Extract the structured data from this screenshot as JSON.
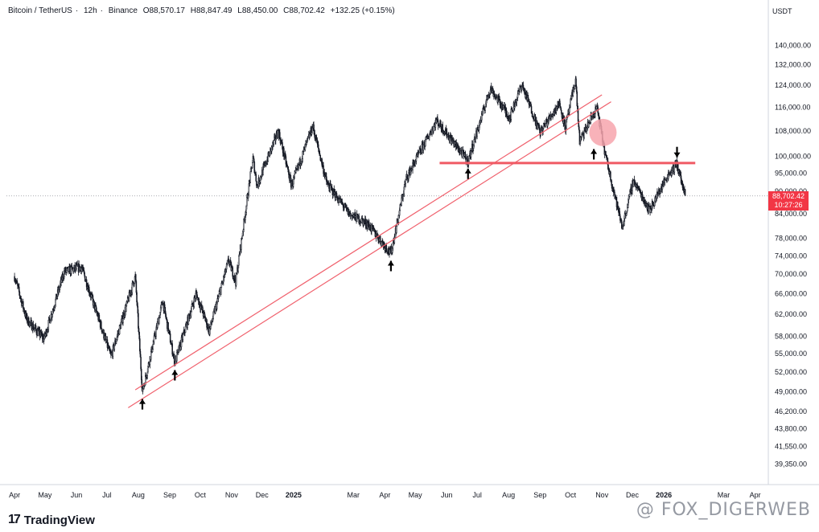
{
  "header": {
    "symbol": "Bitcoin / TetherUS",
    "interval": "12h",
    "exchange": "Binance",
    "open": "O88,570.17",
    "high": "H88,847.49",
    "low": "L88,450.00",
    "close": "C88,702.42",
    "change": "+132.25 (+0.15%)"
  },
  "unit_label": "USDT",
  "last_price": "88,702.42",
  "countdown": "10:27:26",
  "branding": {
    "logo_text": "TradingView",
    "watermark": "@ FOX_DIGERWEB"
  },
  "colors": {
    "candle": "#131722",
    "trendline": "#f0616d",
    "level": "#f05a64",
    "circle": "#f7a5ad",
    "price_tag": "#f23645"
  },
  "chart_data": {
    "type": "candlestick",
    "title": "",
    "y_scale": "log",
    "ylim": [
      37000,
      150000
    ],
    "y_ticks": [
      "140,000.00",
      "132,000.00",
      "124,000.00",
      "116,000.00",
      "108,000.00",
      "100,000.00",
      "95,000.00",
      "90,000.00",
      "84,000.00",
      "78,000.00",
      "74,000.00",
      "70,000.00",
      "66,000.00",
      "62,000.00",
      "58,000.00",
      "55,000.00",
      "52,000.00",
      "49,000.00",
      "46,200.00",
      "43,800.00",
      "41,550.00",
      "39,350.00"
    ],
    "x_ticks": [
      "Apr",
      "May",
      "Jun",
      "Jul",
      "Aug",
      "Sep",
      "Oct",
      "Nov",
      "Dec",
      "2025",
      "Mar",
      "Apr",
      "May",
      "Jun",
      "Jul",
      "Aug",
      "Sep",
      "Oct",
      "Nov",
      "Dec",
      "2026",
      "Mar",
      "Apr"
    ],
    "price_path": [
      [
        "2024-04-01",
        69500
      ],
      [
        "2024-04-13",
        61000
      ],
      [
        "2024-04-30",
        57500
      ],
      [
        "2024-05-20",
        70500
      ],
      [
        "2024-06-06",
        71500
      ],
      [
        "2024-06-24",
        60500
      ],
      [
        "2024-07-05",
        54500
      ],
      [
        "2024-07-29",
        69500
      ],
      [
        "2024-08-05",
        49000
      ],
      [
        "2024-08-25",
        64500
      ],
      [
        "2024-09-06",
        53500
      ],
      [
        "2024-09-27",
        66000
      ],
      [
        "2024-10-10",
        58900
      ],
      [
        "2024-10-29",
        73000
      ],
      [
        "2024-11-05",
        68500
      ],
      [
        "2024-11-22",
        99500
      ],
      [
        "2024-11-26",
        91500
      ],
      [
        "2024-12-17",
        108000
      ],
      [
        "2024-12-30",
        91500
      ],
      [
        "2025-01-20",
        109500
      ],
      [
        "2025-02-03",
        92000
      ],
      [
        "2025-02-25",
        84000
      ],
      [
        "2025-03-15",
        81500
      ],
      [
        "2025-04-07",
        74500
      ],
      [
        "2025-04-22",
        93500
      ],
      [
        "2025-05-22",
        111500
      ],
      [
        "2025-06-22",
        98500
      ],
      [
        "2025-07-14",
        123000
      ],
      [
        "2025-08-02",
        112500
      ],
      [
        "2025-08-14",
        124400
      ],
      [
        "2025-09-01",
        107500
      ],
      [
        "2025-09-20",
        117500
      ],
      [
        "2025-09-26",
        109000
      ],
      [
        "2025-10-06",
        126200
      ],
      [
        "2025-10-10",
        104500
      ],
      [
        "2025-10-27",
        116000
      ],
      [
        "2025-11-04",
        101000
      ],
      [
        "2025-11-21",
        80600
      ],
      [
        "2025-12-02",
        93000
      ],
      [
        "2025-12-18",
        85000
      ],
      [
        "2026-01-05",
        94500
      ],
      [
        "2026-01-14",
        97800
      ],
      [
        "2026-01-22",
        88702
      ]
    ],
    "annotations": {
      "upper_channel_line": [
        [
          "2024-07-29",
          49300
        ],
        [
          "2025-11-01",
          120500
        ]
      ],
      "lower_channel_line": [
        [
          "2024-07-22",
          46700
        ],
        [
          "2025-11-10",
          118000
        ]
      ],
      "resistance_level": {
        "price": 98000,
        "from": "2025-05-25",
        "to": "2026-02-01"
      },
      "breakdown_circle": {
        "date": "2025-11-02",
        "price": 107500
      },
      "up_arrows": [
        {
          "date": "2024-08-05",
          "price": 49000
        },
        {
          "date": "2024-09-06",
          "price": 53500
        },
        {
          "date": "2025-04-07",
          "price": 74500
        },
        {
          "date": "2025-06-22",
          "price": 98500
        },
        {
          "date": "2025-10-24",
          "price": 104500
        }
      ],
      "down_arrows": [
        {
          "date": "2026-01-14",
          "price": 97800
        }
      ],
      "last_price_line": 88702.42
    }
  }
}
